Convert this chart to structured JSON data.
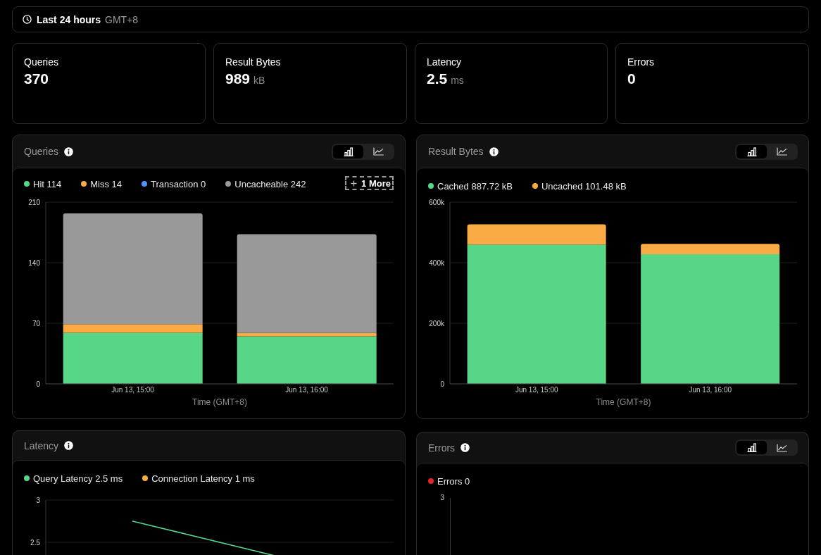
{
  "chart_data": [
    {
      "type": "other",
      "title": "Last 24 hours",
      "subtitle": "GMT+8"
    },
    {
      "type": "other",
      "title": "Queries",
      "annotations": [
        "370"
      ]
    },
    {
      "type": "other",
      "title": "Result Bytes",
      "annotations": [
        "989",
        "kB"
      ]
    },
    {
      "type": "other",
      "title": "Latency",
      "annotations": [
        "2.5",
        "ms"
      ]
    },
    {
      "type": "other",
      "title": "Errors",
      "annotations": [
        "0"
      ]
    },
    {
      "type": "bar",
      "title": "Queries",
      "xlabel": "Time (GMT+8)",
      "categories": [
        "Jun 13, 15:00",
        "Jun 13, 16:00"
      ],
      "stacked": true,
      "series": [
        {
          "name": "Hit 114",
          "color": "#57d687",
          "values": [
            59,
            55
          ]
        },
        {
          "name": "Miss 14",
          "color": "#fbab45",
          "values": [
            10,
            4
          ]
        },
        {
          "name": "Transaction 0",
          "color": "#4d96ff",
          "values": [
            0,
            0
          ]
        },
        {
          "name": "Uncacheable 242",
          "color": "#999999",
          "values": [
            128,
            114
          ]
        }
      ],
      "ylim": [
        0,
        210
      ],
      "yticks": [
        0,
        70,
        140,
        210
      ],
      "grid": "y",
      "legend": "top left",
      "annotations": [
        "1 More"
      ]
    },
    {
      "type": "bar",
      "title": "Result Bytes",
      "xlabel": "Time (GMT+8)",
      "categories": [
        "Jun 13, 15:00",
        "Jun 13, 16:00"
      ],
      "stacked": true,
      "series": [
        {
          "name": "Cached 887.72 kB",
          "color": "#57d687",
          "values": [
            460000,
            428000
          ]
        },
        {
          "name": "Uncached 101.48 kB",
          "color": "#fbab45",
          "values": [
            67000,
            34000
          ]
        }
      ],
      "ylim": [
        0,
        600000
      ],
      "yticks": [
        0,
        {
          "value": 200000,
          "label": "200k"
        },
        {
          "value": 400000,
          "label": "400k"
        },
        {
          "value": 600000,
          "label": "600k"
        }
      ],
      "grid": "y",
      "legend": "top left"
    },
    {
      "type": "line",
      "title": "Latency",
      "categories": [
        null,
        null
      ],
      "series": [
        {
          "name": "Query Latency 2.5 ms",
          "color": "#57d687",
          "values": [
            2.75,
            2.25
          ]
        },
        {
          "name": "Connection Latency 1 ms",
          "color": "#fbab45",
          "values": [
            null,
            null
          ]
        }
      ],
      "ylim": [
        1,
        3
      ],
      "yticks": [
        2.5,
        3
      ],
      "grid": "y",
      "legend": "top left",
      "tick_labels": "y"
    },
    {
      "type": "other",
      "title": "Errors",
      "series": [
        {
          "name": "Errors 0",
          "color": "#e5242a"
        }
      ],
      "legend": "top left",
      "annotations": [
        "3"
      ]
    }
  ]
}
